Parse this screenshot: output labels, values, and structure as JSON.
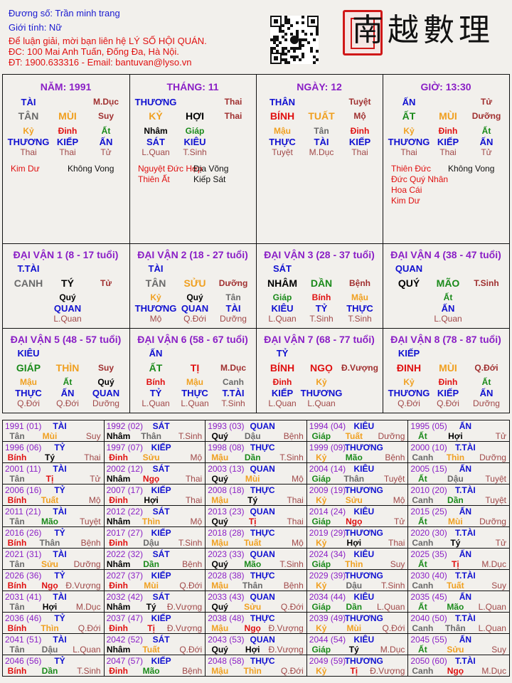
{
  "header": {
    "name_line": "Đương số: Trần minh trang",
    "gender_line": "Giới tính:   Nữ",
    "contact_lines": [
      "Để luận giải, mời bạn liên hệ LÝ SỐ HỘI QUÁN.",
      "ĐC: 100 Mai Anh Tuấn, Đống Đa, Hà Nội.",
      "ĐT: 1900.633316 - Email: bantuvan@lyso.vn"
    ],
    "logo_text": "南越數理"
  },
  "colors": {
    "metal": "#6a6a6a",
    "water": "#000000",
    "wood": "#1a8a1a",
    "fire": "#e01010",
    "earth": "#f0a020",
    "title": "#8a1fc6",
    "star": "#1010d0",
    "phase": "#a03030"
  },
  "pillars": [
    {
      "title": "NĂM: 1991",
      "star": "TÀI",
      "phase_top": "M.Dục",
      "can": "TÂN",
      "chi": "MÙI",
      "phase": "Suy",
      "hidden": [
        {
          "stem": "Kỷ",
          "star": "THƯƠNG",
          "phase": "Thai"
        },
        {
          "stem": "Đinh",
          "star": "KIẾP",
          "phase": "Thai"
        },
        {
          "stem": "Ất",
          "star": "ẤN",
          "phase": "Tử"
        }
      ],
      "good_stars": [
        "Kim Dư"
      ],
      "bad_stars": [
        "Không Vong"
      ]
    },
    {
      "title": "THÁNG: 11",
      "star": "THƯƠNG",
      "phase_top": "Thai",
      "can": "KỶ",
      "chi": "HỢI",
      "phase": "Thai",
      "hidden": [
        {
          "stem": "Nhâm",
          "star": "SÁT",
          "phase": "L.Quan"
        },
        {
          "stem": "Giáp",
          "star": "KIÊU",
          "phase": "T.Sinh"
        },
        null
      ],
      "good_stars": [
        "Nguyệt Đức Hợp",
        "Thiên Ất"
      ],
      "bad_stars": [
        "Địa Võng",
        "Kiếp Sát"
      ]
    },
    {
      "title": "NGÀY: 12",
      "star": "THÂN",
      "phase_top": "Tuyệt",
      "can": "BÍNH",
      "chi": "TUẤT",
      "phase": "Mộ",
      "hidden": [
        {
          "stem": "Mậu",
          "star": "THỰC",
          "phase": "Tuyệt"
        },
        {
          "stem": "Tân",
          "star": "TÀI",
          "phase": "M.Dục"
        },
        {
          "stem": "Đinh",
          "star": "KIẾP",
          "phase": "Thai"
        }
      ],
      "good_stars": [],
      "bad_stars": []
    },
    {
      "title": "GIỜ: 13:30",
      "star": "ẤN",
      "phase_top": "Tử",
      "can": "ẤT",
      "chi": "MÙI",
      "phase": "Dưỡng",
      "hidden": [
        {
          "stem": "Kỷ",
          "star": "THƯƠNG",
          "phase": "Thai"
        },
        {
          "stem": "Đinh",
          "star": "KIẾP",
          "phase": "Thai"
        },
        {
          "stem": "Ất",
          "star": "ẤN",
          "phase": "Tử"
        }
      ],
      "good_stars": [
        "Thiên Đức",
        "Đức Quý Nhân",
        "Hoa Cái",
        "Kim Dư"
      ],
      "bad_stars": [
        "Không Vong"
      ]
    }
  ],
  "dai_van": [
    {
      "title": "ĐẠI VẬN 1 (8 - 17 tuổi)",
      "star": "T.TÀI",
      "can": "CANH",
      "chi": "TÝ",
      "phase": "Tử",
      "hidden": [
        null,
        {
          "stem": "Quý",
          "star": "QUAN",
          "phase": "L.Quan"
        },
        null
      ]
    },
    {
      "title": "ĐẠI VẬN 2 (18 - 27 tuổi)",
      "star": "TÀI",
      "can": "TÂN",
      "chi": "SỬU",
      "phase": "Dưỡng",
      "hidden": [
        {
          "stem": "Kỷ",
          "star": "THƯƠNG",
          "phase": "Mộ"
        },
        {
          "stem": "Quý",
          "star": "QUAN",
          "phase": "Q.Đới"
        },
        {
          "stem": "Tân",
          "star": "TÀI",
          "phase": "Dưỡng"
        }
      ]
    },
    {
      "title": "ĐẠI VẬN 3 (28 - 37 tuổi)",
      "star": "SÁT",
      "can": "NHÂM",
      "chi": "DẦN",
      "phase": "Bệnh",
      "hidden": [
        {
          "stem": "Giáp",
          "star": "KIÊU",
          "phase": "L.Quan"
        },
        {
          "stem": "Bính",
          "star": "TỶ",
          "phase": "T.Sinh"
        },
        {
          "stem": "Mậu",
          "star": "THỰC",
          "phase": "T.Sinh"
        }
      ]
    },
    {
      "title": "ĐẠI VẬN 4 (38 - 47 tuổi)",
      "star": "QUAN",
      "can": "QUÝ",
      "chi": "MÃO",
      "phase": "T.Sinh",
      "hidden": [
        null,
        {
          "stem": "Ất",
          "star": "ẤN",
          "phase": "L.Quan"
        },
        null
      ]
    },
    {
      "title": "ĐẠI VẬN 5 (48 - 57 tuổi)",
      "star": "KIÊU",
      "can": "GIÁP",
      "chi": "THÌN",
      "phase": "Suy",
      "hidden": [
        {
          "stem": "Mậu",
          "star": "THỰC",
          "phase": "Q.Đới"
        },
        {
          "stem": "Ất",
          "star": "ẤN",
          "phase": "Q.Đới"
        },
        {
          "stem": "Quý",
          "star": "QUAN",
          "phase": "Dưỡng"
        }
      ]
    },
    {
      "title": "ĐẠI VẬN 6 (58 - 67 tuổi)",
      "star": "ẤN",
      "can": "ẤT",
      "chi": "TỊ",
      "phase": "M.Dục",
      "hidden": [
        {
          "stem": "Bính",
          "star": "TỶ",
          "phase": "L.Quan"
        },
        {
          "stem": "Mậu",
          "star": "THỰC",
          "phase": "L.Quan"
        },
        {
          "stem": "Canh",
          "star": "T.TÀI",
          "phase": "T.Sinh"
        }
      ]
    },
    {
      "title": "ĐẠI VẬN 7 (68 - 77 tuổi)",
      "star": "TỶ",
      "can": "BÍNH",
      "chi": "NGỌ",
      "phase": "Đ.Vượng",
      "hidden": [
        {
          "stem": "Đinh",
          "star": "KIẾP",
          "phase": "L.Quan"
        },
        {
          "stem": "Kỷ",
          "star": "THƯƠNG",
          "phase": "L.Quan"
        },
        null
      ]
    },
    {
      "title": "ĐẠI VẬN 8 (78 - 87 tuổi)",
      "star": "KIẾP",
      "can": "ĐINH",
      "chi": "MÙI",
      "phase": "Q.Đới",
      "hidden": [
        {
          "stem": "Kỷ",
          "star": "THƯƠNG",
          "phase": "Q.Đới"
        },
        {
          "stem": "Đinh",
          "star": "KIẾP",
          "phase": "Q.Đới"
        },
        {
          "stem": "Ất",
          "star": "ẤN",
          "phase": "Dưỡng"
        }
      ]
    }
  ],
  "years": [
    [
      "1991 (01)",
      "TÀI",
      "Tân",
      "Mùi",
      "Suy"
    ],
    [
      "1992 (02)",
      "SÁT",
      "Nhâm",
      "Thân",
      "T.Sinh"
    ],
    [
      "1993 (03)",
      "QUAN",
      "Quý",
      "Dậu",
      "Bệnh"
    ],
    [
      "1994 (04)",
      "KIÊU",
      "Giáp",
      "Tuất",
      "Dưỡng"
    ],
    [
      "1995 (05)",
      "ẤN",
      "Ất",
      "Hợi",
      "Tử"
    ],
    [
      "1996 (06)",
      "TỶ",
      "Bính",
      "Tý",
      "Thai"
    ],
    [
      "1997 (07)",
      "KIẾP",
      "Đinh",
      "Sửu",
      "Mộ"
    ],
    [
      "1998 (08)",
      "THỰC",
      "Mậu",
      "Dần",
      "T.Sinh"
    ],
    [
      "1999 (09)",
      "THƯƠNG",
      "Kỷ",
      "Mão",
      "Bệnh"
    ],
    [
      "2000 (10)",
      "T.TÀI",
      "Canh",
      "Thìn",
      "Dưỡng"
    ],
    [
      "2001 (11)",
      "TÀI",
      "Tân",
      "Tị",
      "Tử"
    ],
    [
      "2002 (12)",
      "SÁT",
      "Nhâm",
      "Ngọ",
      "Thai"
    ],
    [
      "2003 (13)",
      "QUAN",
      "Quý",
      "Mùi",
      "Mộ"
    ],
    [
      "2004 (14)",
      "KIÊU",
      "Giáp",
      "Thân",
      "Tuyệt"
    ],
    [
      "2005 (15)",
      "ẤN",
      "Ất",
      "Dậu",
      "Tuyệt"
    ],
    [
      "2006 (16)",
      "TỶ",
      "Bính",
      "Tuất",
      "Mộ"
    ],
    [
      "2007 (17)",
      "KIẾP",
      "Đinh",
      "Hợi",
      "Thai"
    ],
    [
      "2008 (18)",
      "THỰC",
      "Mậu",
      "Tý",
      "Thai"
    ],
    [
      "2009 (19)",
      "THƯƠNG",
      "Kỷ",
      "Sửu",
      "Mộ"
    ],
    [
      "2010 (20)",
      "T.TÀI",
      "Canh",
      "Dần",
      "Tuyệt"
    ],
    [
      "2011 (21)",
      "TÀI",
      "Tân",
      "Mão",
      "Tuyệt"
    ],
    [
      "2012 (22)",
      "SÁT",
      "Nhâm",
      "Thìn",
      "Mộ"
    ],
    [
      "2013 (23)",
      "QUAN",
      "Quý",
      "Tị",
      "Thai"
    ],
    [
      "2014 (24)",
      "KIÊU",
      "Giáp",
      "Ngọ",
      "Tử"
    ],
    [
      "2015 (25)",
      "ẤN",
      "Ất",
      "Mùi",
      "Dưỡng"
    ],
    [
      "2016 (26)",
      "TỶ",
      "Bính",
      "Thân",
      "Bệnh"
    ],
    [
      "2017 (27)",
      "KIẾP",
      "Đinh",
      "Dậu",
      "T.Sinh"
    ],
    [
      "2018 (28)",
      "THỰC",
      "Mậu",
      "Tuất",
      "Mộ"
    ],
    [
      "2019 (29)",
      "THƯƠNG",
      "Kỷ",
      "Hợi",
      "Thai"
    ],
    [
      "2020 (30)",
      "T.TÀI",
      "Canh",
      "Tý",
      "Tử"
    ],
    [
      "2021 (31)",
      "TÀI",
      "Tân",
      "Sửu",
      "Dưỡng"
    ],
    [
      "2022 (32)",
      "SÁT",
      "Nhâm",
      "Dần",
      "Bệnh"
    ],
    [
      "2023 (33)",
      "QUAN",
      "Quý",
      "Mão",
      "T.Sinh"
    ],
    [
      "2024 (34)",
      "KIÊU",
      "Giáp",
      "Thìn",
      "Suy"
    ],
    [
      "2025 (35)",
      "ẤN",
      "Ất",
      "Tị",
      "M.Dục"
    ],
    [
      "2026 (36)",
      "TỶ",
      "Bính",
      "Ngọ",
      "Đ.Vượng"
    ],
    [
      "2027 (37)",
      "KIẾP",
      "Đinh",
      "Mùi",
      "Q.Đới"
    ],
    [
      "2028 (38)",
      "THỰC",
      "Mậu",
      "Thân",
      "Bệnh"
    ],
    [
      "2029 (39)",
      "THƯƠNG",
      "Kỷ",
      "Dậu",
      "T.Sinh"
    ],
    [
      "2030 (40)",
      "T.TÀI",
      "Canh",
      "Tuất",
      "Suy"
    ],
    [
      "2031 (41)",
      "TÀI",
      "Tân",
      "Hợi",
      "M.Dục"
    ],
    [
      "2032 (42)",
      "SÁT",
      "Nhâm",
      "Tý",
      "Đ.Vượng"
    ],
    [
      "2033 (43)",
      "QUAN",
      "Quý",
      "Sửu",
      "Q.Đới"
    ],
    [
      "2034 (44)",
      "KIÊU",
      "Giáp",
      "Dần",
      "L.Quan"
    ],
    [
      "2035 (45)",
      "ẤN",
      "Ất",
      "Mão",
      "L.Quan"
    ],
    [
      "2036 (46)",
      "TỶ",
      "Bính",
      "Thìn",
      "Q.Đới"
    ],
    [
      "2037 (47)",
      "KIẾP",
      "Đinh",
      "Tị",
      "Đ.Vượng"
    ],
    [
      "2038 (48)",
      "THỰC",
      "Mậu",
      "Ngọ",
      "Đ.Vượng"
    ],
    [
      "2039 (49)",
      "THƯƠNG",
      "Kỷ",
      "Mùi",
      "Q.Đới"
    ],
    [
      "2040 (50)",
      "T.TÀI",
      "Canh",
      "Thân",
      "L.Quan"
    ],
    [
      "2041 (51)",
      "TÀI",
      "Tân",
      "Dậu",
      "L.Quan"
    ],
    [
      "2042 (52)",
      "SÁT",
      "Nhâm",
      "Tuất",
      "Q.Đới"
    ],
    [
      "2043 (53)",
      "QUAN",
      "Quý",
      "Hợi",
      "Đ.Vượng"
    ],
    [
      "2044 (54)",
      "KIÊU",
      "Giáp",
      "Tý",
      "M.Dục"
    ],
    [
      "2045 (55)",
      "ẤN",
      "Ất",
      "Sửu",
      "Suy"
    ],
    [
      "2046 (56)",
      "TỶ",
      "Bính",
      "Dần",
      "T.Sinh"
    ],
    [
      "2047 (57)",
      "KIẾP",
      "Đinh",
      "Mão",
      "Bệnh"
    ],
    [
      "2048 (58)",
      "THỰC",
      "Mậu",
      "Thìn",
      "Q.Đới"
    ],
    [
      "2049 (59)",
      "THƯƠNG",
      "Kỷ",
      "Tị",
      "Đ.Vượng"
    ],
    [
      "2050 (60)",
      "T.TÀI",
      "Canh",
      "Ngọ",
      "M.Dục"
    ]
  ]
}
